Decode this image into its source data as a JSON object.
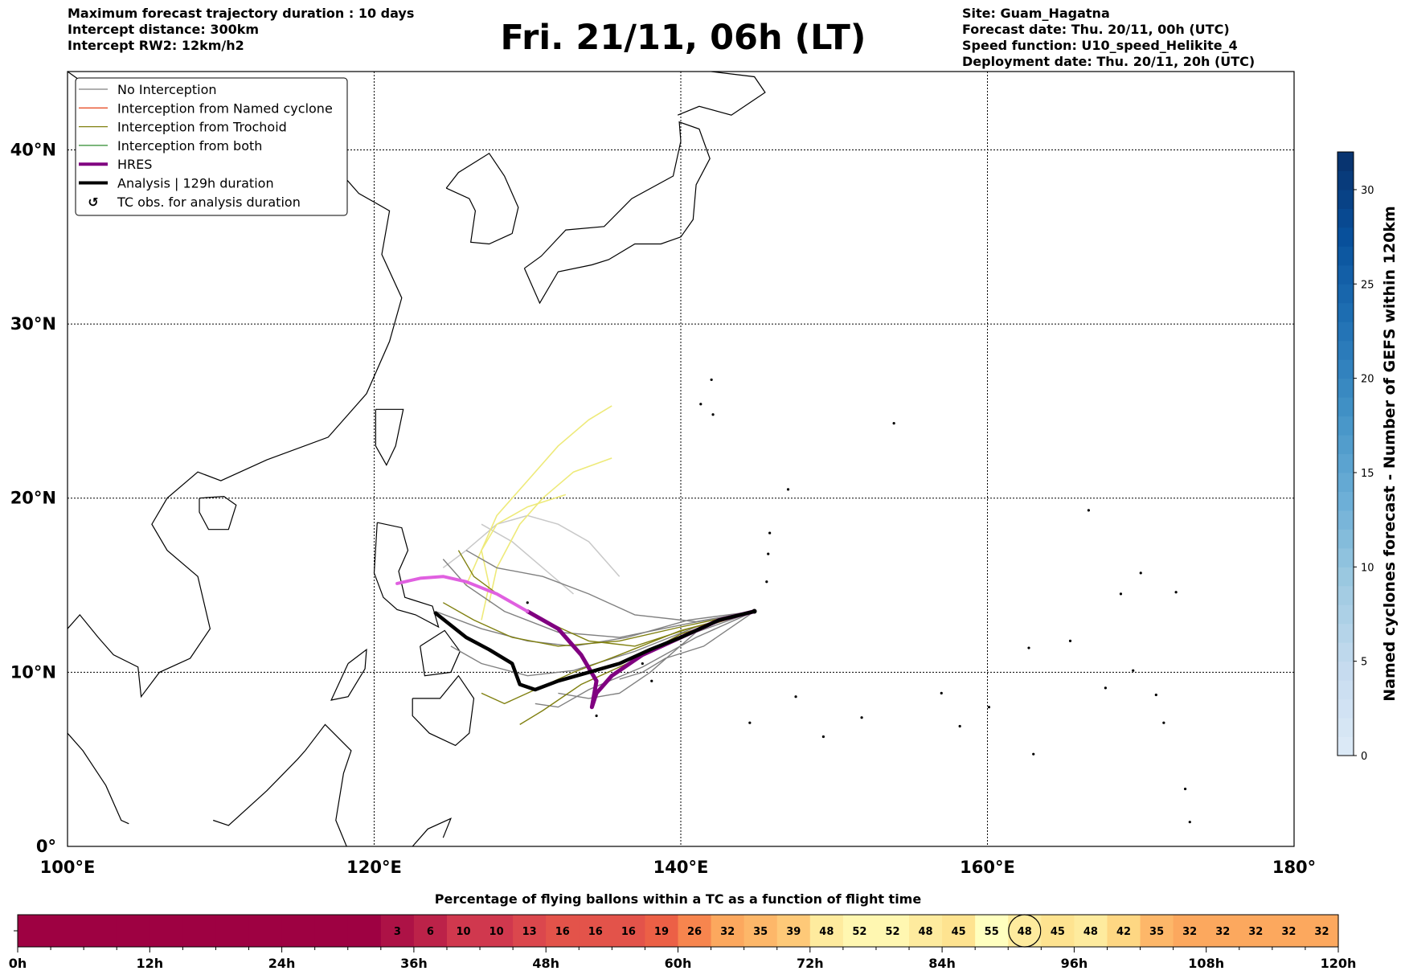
{
  "header": {
    "left": [
      "Maximum forecast trajectory duration : 10 days",
      "Intercept distance: 300km",
      "Intercept RW2: 12km/h2"
    ],
    "right": [
      "Site: Guam_Hagatna",
      "Forecast date: Thu. 20/11, 00h (UTC)",
      "Speed function: U10_speed_Helikite_4",
      "Deployment date: Thu. 20/11, 20h (UTC)"
    ]
  },
  "title": "Fri. 21/11, 06h (LT)",
  "chart_data": [
    {
      "type": "map",
      "lon_range": [
        100,
        180
      ],
      "lat_range": [
        0,
        44.5
      ],
      "x_ticks": [
        {
          "value": 100,
          "label": "100°E"
        },
        {
          "value": 120,
          "label": "120°E"
        },
        {
          "value": 140,
          "label": "140°E"
        },
        {
          "value": 160,
          "label": "160°E"
        },
        {
          "value": 180,
          "label": "180°"
        }
      ],
      "y_ticks": [
        {
          "value": 0,
          "label": "0°"
        },
        {
          "value": 10,
          "label": "10°N"
        },
        {
          "value": 20,
          "label": "20°N"
        },
        {
          "value": 30,
          "label": "30°N"
        },
        {
          "value": 40,
          "label": "40°N"
        }
      ],
      "grid": true,
      "legend_position": "top-left",
      "legend": [
        {
          "label": "No Interception",
          "color": "#808080",
          "style": "line-thin"
        },
        {
          "label": "Interception from Named cyclone",
          "color": "#e8502a",
          "style": "line-thin"
        },
        {
          "label": "Interception from Trochoid",
          "color": "#808010",
          "style": "line-thin"
        },
        {
          "label": "Interception from both",
          "color": "#2e8b2e",
          "style": "line-thin"
        },
        {
          "label": "HRES",
          "color": "#800080",
          "style": "line-thick"
        },
        {
          "label": "Analysis | 129h duration",
          "color": "#000000",
          "style": "line-thick"
        },
        {
          "label": "TC obs. for analysis duration",
          "color": "#000000",
          "style": "cyclone-marker"
        }
      ],
      "launch_site": {
        "lon": 144.8,
        "lat": 13.5
      },
      "tracks": {
        "analysis": [
          [
            144.8,
            13.5
          ],
          [
            142.5,
            13.0
          ],
          [
            140,
            12.0
          ],
          [
            138,
            11.3
          ],
          [
            136,
            10.5
          ],
          [
            134,
            10.0
          ],
          [
            132,
            9.5
          ],
          [
            130.5,
            9.0
          ],
          [
            129.5,
            9.3
          ],
          [
            129.0,
            10.5
          ],
          [
            127.5,
            11.3
          ],
          [
            126,
            12.0
          ],
          [
            125,
            12.7
          ],
          [
            124,
            13.4
          ]
        ],
        "hres": [
          [
            144.8,
            13.5
          ],
          [
            142.5,
            13.0
          ],
          [
            140,
            12.0
          ],
          [
            137.5,
            11.0
          ],
          [
            135.5,
            9.8
          ],
          [
            134.5,
            8.8
          ],
          [
            134.2,
            8.0
          ],
          [
            134.5,
            9.5
          ],
          [
            133.5,
            11.0
          ],
          [
            132.0,
            12.5
          ],
          [
            130.0,
            13.5
          ],
          [
            128.0,
            14.5
          ],
          [
            126.0,
            15.2
          ],
          [
            124.5,
            15.5
          ],
          [
            123,
            15.4
          ],
          [
            121.5,
            15.1
          ]
        ],
        "no_interception": [
          [
            [
              144.8,
              13.5
            ],
            [
              141,
              12.6
            ],
            [
              137,
              11.2
            ],
            [
              133,
              10.1
            ],
            [
              130,
              9.8
            ],
            [
              127,
              10.5
            ],
            [
              125,
              11.5
            ]
          ],
          [
            [
              144.8,
              13.5
            ],
            [
              141,
              12.0
            ],
            [
              137.5,
              10.3
            ],
            [
              134,
              9.0
            ],
            [
              132,
              8.0
            ],
            [
              130.5,
              8.2
            ]
          ],
          [
            [
              144.8,
              13.5
            ],
            [
              140.5,
              12.8
            ],
            [
              136,
              12.0
            ],
            [
              132,
              12.3
            ],
            [
              128.5,
              13.5
            ],
            [
              126,
              15.0
            ],
            [
              124.5,
              16.5
            ]
          ],
          [
            [
              144.8,
              13.5
            ],
            [
              141,
              12.9
            ],
            [
              137,
              13.3
            ],
            [
              134,
              14.5
            ],
            [
              131,
              15.5
            ],
            [
              128,
              16.0
            ],
            [
              126,
              17.0
            ]
          ],
          [
            [
              144.8,
              13.5
            ],
            [
              140.5,
              13.0
            ],
            [
              136.5,
              12.0
            ],
            [
              133,
              11.5
            ],
            [
              130,
              11.8
            ],
            [
              127,
              12.5
            ],
            [
              124,
              13.5
            ]
          ],
          [
            [
              144.8,
              13.5
            ],
            [
              141,
              12.3
            ],
            [
              138,
              10.0
            ],
            [
              136,
              8.8
            ],
            [
              134,
              8.5
            ],
            [
              132,
              8.8
            ]
          ],
          [
            [
              144.8,
              13.5
            ],
            [
              141.5,
              11.5
            ],
            [
              139,
              10.8
            ],
            [
              137.5,
              10.0
            ],
            [
              136,
              9.6
            ]
          ]
        ],
        "trochoid": [
          [
            [
              144.8,
              13.5
            ],
            [
              140,
              12.4
            ],
            [
              136,
              11.0
            ],
            [
              133,
              10.0
            ],
            [
              130.5,
              9.0
            ],
            [
              128.5,
              8.2
            ],
            [
              127,
              8.8
            ]
          ],
          [
            [
              144.8,
              13.5
            ],
            [
              140,
              12.2
            ],
            [
              136.5,
              10.5
            ],
            [
              133.5,
              9.3
            ],
            [
              131,
              7.8
            ],
            [
              129.5,
              7.0
            ]
          ],
          [
            [
              144.8,
              13.5
            ],
            [
              140,
              12.6
            ],
            [
              136,
              11.8
            ],
            [
              132,
              11.5
            ],
            [
              129,
              12.0
            ],
            [
              126.5,
              13.0
            ],
            [
              124.5,
              14.0
            ]
          ],
          [
            [
              144.8,
              13.5
            ],
            [
              140.5,
              12.5
            ],
            [
              137,
              11.5
            ],
            [
              134,
              11.8
            ],
            [
              131,
              13.0
            ],
            [
              128.5,
              14.2
            ],
            [
              126.5,
              15.5
            ],
            [
              125.5,
              17
            ]
          ]
        ],
        "trochoid_light": [
          [
            [
              127,
              13
            ],
            [
              127.5,
              15
            ],
            [
              127,
              17
            ],
            [
              128,
              18.5
            ],
            [
              130,
              19.5
            ],
            [
              132.5,
              20.2
            ]
          ],
          [
            [
              127.5,
              14
            ],
            [
              128,
              16
            ],
            [
              129.5,
              18.5
            ],
            [
              131,
              20
            ],
            [
              133,
              21.5
            ],
            [
              135.5,
              22.3
            ]
          ],
          [
            [
              126,
              15
            ],
            [
              127,
              17
            ],
            [
              128,
              19
            ],
            [
              130,
              21
            ],
            [
              132,
              23
            ],
            [
              134,
              24.5
            ],
            [
              135.5,
              25.3
            ]
          ]
        ],
        "no_interception_light": [
          [
            [
              136,
              15.5
            ],
            [
              134,
              17.5
            ],
            [
              132,
              18.5
            ],
            [
              130,
              19
            ],
            [
              128,
              18.5
            ],
            [
              126,
              17
            ],
            [
              124.5,
              16
            ]
          ],
          [
            [
              133,
              14.5
            ],
            [
              131,
              16
            ],
            [
              129,
              17.5
            ],
            [
              127,
              18.5
            ]
          ]
        ]
      }
    },
    {
      "type": "colorbar",
      "label": "Named cyclones forecast - Number of GEFS within 120km",
      "range": [
        0,
        32
      ],
      "ticks": [
        0,
        5,
        10,
        15,
        20,
        25,
        30
      ],
      "colormap": "Blues",
      "n_bins": 32
    },
    {
      "type": "timeline-heatmap",
      "title": "Percentage of flying ballons within a TC as a function of flight time",
      "x_range": [
        0,
        120
      ],
      "tick_labels": [
        "0h",
        "12h",
        "24h",
        "36h",
        "48h",
        "60h",
        "72h",
        "84h",
        "96h",
        "108h",
        "120h"
      ],
      "tick_values": [
        0,
        12,
        24,
        36,
        48,
        60,
        72,
        84,
        96,
        108,
        120
      ],
      "bin_hours": 3,
      "values": [
        0,
        0,
        0,
        0,
        0,
        0,
        0,
        0,
        0,
        0,
        0,
        3,
        6,
        10,
        10,
        13,
        16,
        16,
        16,
        19,
        26,
        32,
        35,
        39,
        48,
        52,
        52,
        48,
        45,
        55,
        48,
        45,
        48,
        42,
        35,
        32,
        32,
        32,
        32,
        32
      ],
      "labels_visible_from_index": 11,
      "highlight_index": 30,
      "colormap": "Spectral"
    }
  ]
}
